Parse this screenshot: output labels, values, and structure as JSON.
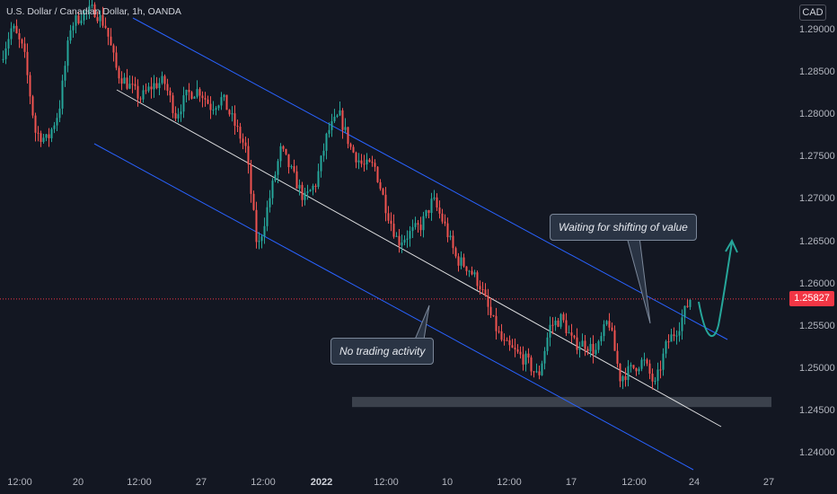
{
  "header": {
    "title": "U.S. Dollar / Canadian Dollar, 1h, OANDA",
    "currency": "CAD"
  },
  "last_price": "1.25827",
  "annotations": {
    "waiting": "Waiting for shifting of value",
    "no_trading": "No trading activity"
  },
  "colors": {
    "background": "#131722",
    "up_candle": "#26a69a",
    "down_candle": "#ef5350",
    "channel_line": "#2962ff",
    "mid_line": "#ffffff",
    "price_tag": "#f23645",
    "projection_arrow": "#26a69a"
  },
  "chart_data": {
    "type": "candlestick",
    "title": "U.S. Dollar / Canadian Dollar, 1h, OANDA",
    "yaxis": {
      "ticks": [
        "1.29000",
        "1.28500",
        "1.28000",
        "1.27500",
        "1.27000",
        "1.26500",
        "1.26000",
        "1.25500",
        "1.25000",
        "1.24500",
        "1.24000"
      ],
      "range": [
        1.2375,
        1.2925
      ],
      "position": "right"
    },
    "xaxis": {
      "ticks": [
        "12:00",
        "20",
        "12:00",
        "27",
        "12:00",
        "2022",
        "12:00",
        "10",
        "12:00",
        "17",
        "12:00",
        "24",
        "27"
      ]
    },
    "price_path": [
      1.2865,
      1.2905,
      1.2875,
      1.278,
      1.277,
      1.2805,
      1.2905,
      1.292,
      1.2925,
      1.2905,
      1.285,
      1.2835,
      1.282,
      1.2835,
      1.284,
      1.28,
      1.2825,
      1.283,
      1.281,
      1.282,
      1.279,
      1.276,
      1.264,
      1.27,
      1.276,
      1.273,
      1.27,
      1.272,
      1.278,
      1.28,
      1.276,
      1.274,
      1.274,
      1.269,
      1.265,
      1.266,
      1.267,
      1.27,
      1.267,
      1.263,
      1.262,
      1.26,
      1.256,
      1.253,
      1.252,
      1.251,
      1.249,
      1.255,
      1.256,
      1.253,
      1.253,
      1.252,
      1.256,
      1.249,
      1.25,
      1.251,
      1.248,
      1.253,
      1.255,
      1.2583
    ],
    "current_price": 1.25827,
    "support_zone": [
      1.2455,
      1.2467
    ],
    "projection": [
      1.2583,
      1.2555,
      1.265
    ]
  }
}
